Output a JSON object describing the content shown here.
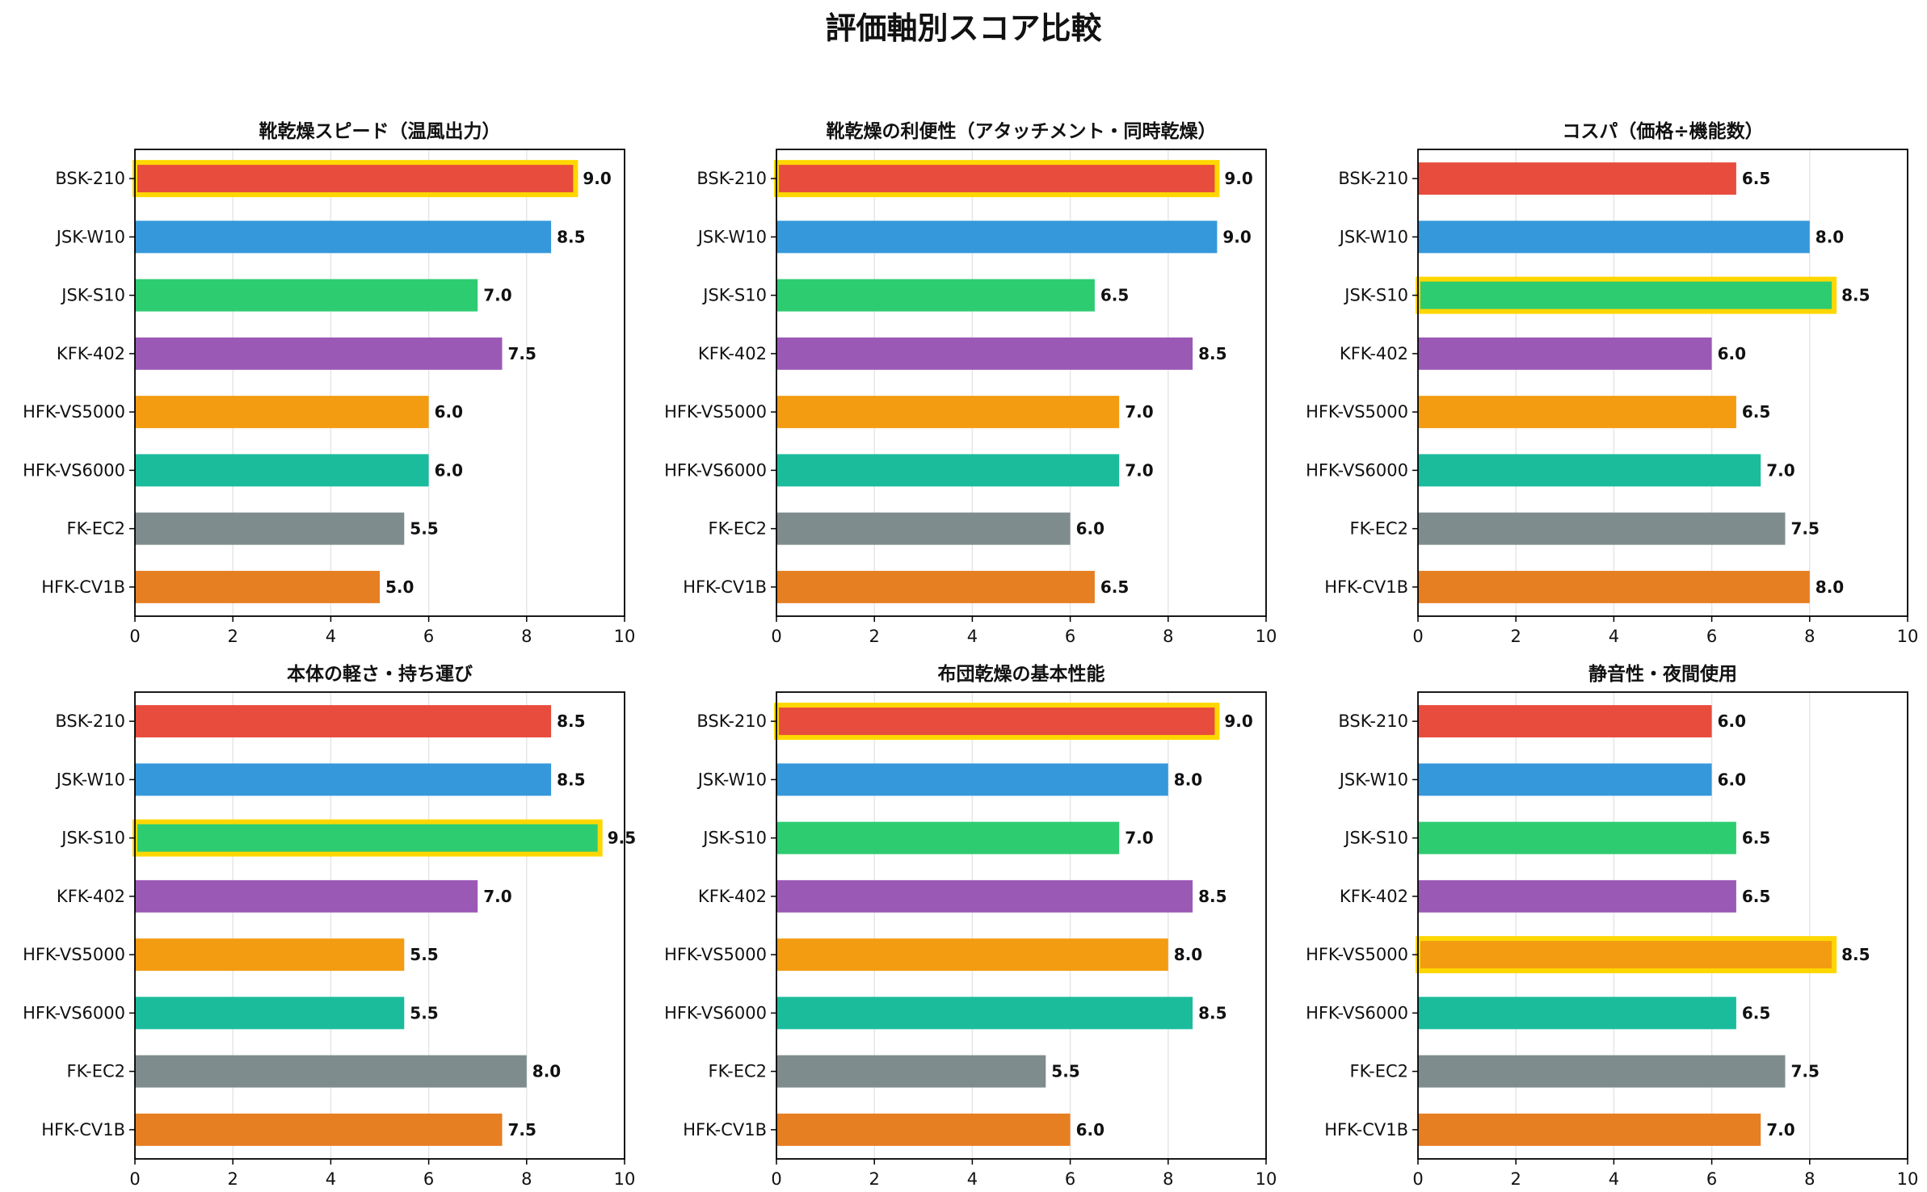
{
  "suptitle": "評価軸別スコア比較",
  "chart_data": [
    {
      "type": "bar",
      "orientation": "horizontal",
      "title": "靴乾燥スピード（温風出力）",
      "categories": [
        "BSK-210",
        "JSK-W10",
        "JSK-S10",
        "KFK-402",
        "HFK-VS5000",
        "HFK-VS6000",
        "FK-EC2",
        "HFK-CV1B"
      ],
      "values": [
        9.0,
        8.5,
        7.0,
        7.5,
        6.0,
        6.0,
        5.5,
        5.0
      ],
      "highlight": [
        "BSK-210"
      ],
      "xlim": [
        0,
        10
      ],
      "xticks": [
        "0",
        "2",
        "4",
        "6",
        "8",
        "10"
      ],
      "grid": "vertical"
    },
    {
      "type": "bar",
      "orientation": "horizontal",
      "title": "靴乾燥の利便性（アタッチメント・同時乾燥）",
      "categories": [
        "BSK-210",
        "JSK-W10",
        "JSK-S10",
        "KFK-402",
        "HFK-VS5000",
        "HFK-VS6000",
        "FK-EC2",
        "HFK-CV1B"
      ],
      "values": [
        9.0,
        9.0,
        6.5,
        8.5,
        7.0,
        7.0,
        6.0,
        6.5
      ],
      "highlight": [
        "BSK-210"
      ],
      "xlim": [
        0,
        10
      ],
      "xticks": [
        "0",
        "2",
        "4",
        "6",
        "8",
        "10"
      ],
      "grid": "vertical"
    },
    {
      "type": "bar",
      "orientation": "horizontal",
      "title": "コスパ（価格÷機能数）",
      "categories": [
        "BSK-210",
        "JSK-W10",
        "JSK-S10",
        "KFK-402",
        "HFK-VS5000",
        "HFK-VS6000",
        "FK-EC2",
        "HFK-CV1B"
      ],
      "values": [
        6.5,
        8.0,
        8.5,
        6.0,
        6.5,
        7.0,
        7.5,
        8.0
      ],
      "highlight": [
        "JSK-S10"
      ],
      "xlim": [
        0,
        10
      ],
      "xticks": [
        "0",
        "2",
        "4",
        "6",
        "8",
        "10"
      ],
      "grid": "vertical"
    },
    {
      "type": "bar",
      "orientation": "horizontal",
      "title": "本体の軽さ・持ち運び",
      "categories": [
        "BSK-210",
        "JSK-W10",
        "JSK-S10",
        "KFK-402",
        "HFK-VS5000",
        "HFK-VS6000",
        "FK-EC2",
        "HFK-CV1B"
      ],
      "values": [
        8.5,
        8.5,
        9.5,
        7.0,
        5.5,
        5.5,
        8.0,
        7.5
      ],
      "highlight": [
        "JSK-S10"
      ],
      "xlim": [
        0,
        10
      ],
      "xticks": [
        "0",
        "2",
        "4",
        "6",
        "8",
        "10"
      ],
      "grid": "vertical"
    },
    {
      "type": "bar",
      "orientation": "horizontal",
      "title": "布団乾燥の基本性能",
      "categories": [
        "BSK-210",
        "JSK-W10",
        "JSK-S10",
        "KFK-402",
        "HFK-VS5000",
        "HFK-VS6000",
        "FK-EC2",
        "HFK-CV1B"
      ],
      "values": [
        9.0,
        8.0,
        7.0,
        8.5,
        8.0,
        8.5,
        5.5,
        6.0
      ],
      "highlight": [
        "BSK-210"
      ],
      "xlim": [
        0,
        10
      ],
      "xticks": [
        "0",
        "2",
        "4",
        "6",
        "8",
        "10"
      ],
      "grid": "vertical"
    },
    {
      "type": "bar",
      "orientation": "horizontal",
      "title": "静音性・夜間使用",
      "categories": [
        "BSK-210",
        "JSK-W10",
        "JSK-S10",
        "KFK-402",
        "HFK-VS5000",
        "HFK-VS6000",
        "FK-EC2",
        "HFK-CV1B"
      ],
      "values": [
        6.0,
        6.0,
        6.5,
        6.5,
        8.5,
        6.5,
        7.5,
        7.0
      ],
      "highlight": [
        "HFK-VS5000"
      ],
      "xlim": [
        0,
        10
      ],
      "xticks": [
        "0",
        "2",
        "4",
        "6",
        "8",
        "10"
      ],
      "grid": "vertical"
    }
  ],
  "colors": {
    "categories": [
      "#e74c3c",
      "#3498db",
      "#2ecc71",
      "#9b59b6",
      "#f39c12",
      "#1abc9c",
      "#7f8c8d",
      "#e67e22"
    ],
    "highlight_edge": "#FFD700",
    "grid": "#e6e6e6",
    "axis": "#000000",
    "text": "#111111"
  }
}
